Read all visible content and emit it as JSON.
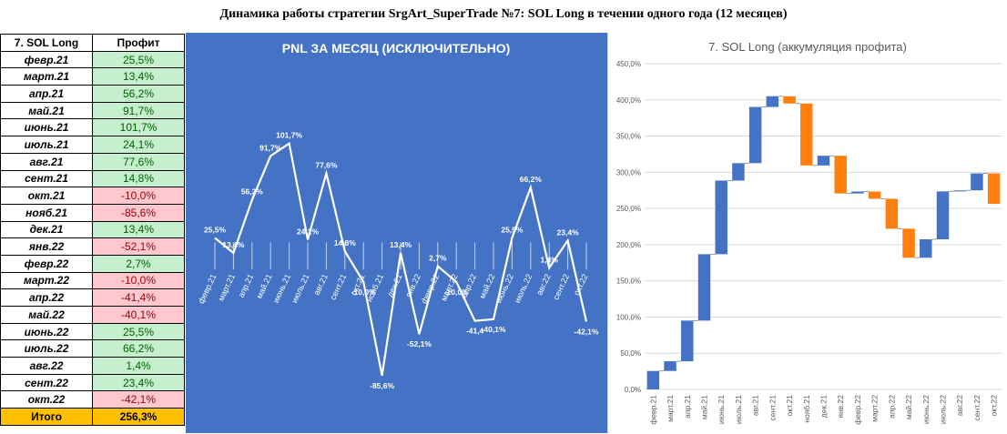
{
  "title": "Динамика работы стратегии SrgArt_SuperTrade №7: SOL Long в течении одного года (12 месяцев)",
  "table": {
    "header": [
      "7. SOL Long",
      "Профит"
    ],
    "rows": [
      {
        "month": "февр.21",
        "value": "25,5%",
        "sign": "pos"
      },
      {
        "month": "март.21",
        "value": "13,4%",
        "sign": "pos"
      },
      {
        "month": "апр.21",
        "value": "56,2%",
        "sign": "pos"
      },
      {
        "month": "май.21",
        "value": "91,7%",
        "sign": "pos"
      },
      {
        "month": "июнь.21",
        "value": "101,7%",
        "sign": "pos"
      },
      {
        "month": "июль.21",
        "value": "24,1%",
        "sign": "pos"
      },
      {
        "month": "авг.21",
        "value": "77,6%",
        "sign": "pos"
      },
      {
        "month": "сент.21",
        "value": "14,8%",
        "sign": "pos"
      },
      {
        "month": "окт.21",
        "value": "-10,0%",
        "sign": "neg"
      },
      {
        "month": "нояб.21",
        "value": "-85,6%",
        "sign": "neg"
      },
      {
        "month": "дек.21",
        "value": "13,4%",
        "sign": "pos"
      },
      {
        "month": "янв.22",
        "value": "-52,1%",
        "sign": "neg"
      },
      {
        "month": "февр.22",
        "value": "2,7%",
        "sign": "pos"
      },
      {
        "month": "март.22",
        "value": "-10,0%",
        "sign": "neg"
      },
      {
        "month": "апр.22",
        "value": "-41,4%",
        "sign": "neg"
      },
      {
        "month": "май.22",
        "value": "-40,1%",
        "sign": "neg"
      },
      {
        "month": "июнь.22",
        "value": "25,5%",
        "sign": "pos"
      },
      {
        "month": "июль.22",
        "value": "66,2%",
        "sign": "pos"
      },
      {
        "month": "авг.22",
        "value": "1,4%",
        "sign": "pos"
      },
      {
        "month": "сент.22",
        "value": "23,4%",
        "sign": "pos"
      },
      {
        "month": "окт.22",
        "value": "-42,1%",
        "sign": "neg"
      }
    ],
    "total_label": "Итого",
    "total_value": "256,3%"
  },
  "chart_data": [
    {
      "type": "line",
      "title": "PNL ЗА МЕСЯЦ (ИСКЛЮЧИТЕЛЬНО)",
      "categories": [
        "февр.21",
        "март.21",
        "апр.21",
        "май.21",
        "июнь.21",
        "июль.21",
        "авг.21",
        "сент.21",
        "окт.21",
        "нояб.21",
        "дек.21",
        "янв.22",
        "февр.22",
        "март.22",
        "апр.22",
        "май.22",
        "июнь.22",
        "июль.22",
        "авг.22",
        "сент.22",
        "окт.22"
      ],
      "values": [
        25.5,
        13.4,
        56.2,
        91.7,
        101.7,
        24.1,
        77.6,
        14.8,
        -10.0,
        -85.6,
        13.4,
        -52.1,
        2.7,
        -10.0,
        -41.4,
        -40.1,
        25.5,
        66.2,
        1.4,
        23.4,
        -42.1
      ],
      "labels": [
        "25,5%",
        "13,4%",
        "56,2%",
        "91,7%",
        "101,7%",
        "24,1%",
        "77,6%",
        "14,8%",
        "-10,0%",
        "-85,6%",
        "13,4%",
        "-52,1%",
        "2,7%",
        "-10,0%",
        "-41,4",
        "-40,1%",
        "25,5%",
        "66,2%",
        "1,4%",
        "23,4%",
        "-42,1%"
      ],
      "ylim": [
        -110,
        125
      ],
      "colors": {
        "background": "#4472c4",
        "line": "#ffffff",
        "text": "#ffffff"
      }
    },
    {
      "type": "waterfall",
      "title": "7. SOL Long (аккумуляция профита)",
      "categories": [
        "февр.21",
        "март.21",
        "апр.21",
        "май.21",
        "июнь.21",
        "июль.21",
        "авг.21",
        "сент.21",
        "окт.21",
        "нояб.21",
        "дек.21",
        "янв.22",
        "февр.22",
        "март.22",
        "апр.22",
        "май.22",
        "июнь.22",
        "июль.22",
        "авг.22",
        "сент.22",
        "окт.22"
      ],
      "values": [
        25.5,
        13.4,
        56.2,
        91.7,
        101.7,
        24.1,
        77.6,
        14.8,
        -10.0,
        -85.6,
        13.4,
        -52.1,
        2.7,
        -10.0,
        -41.4,
        -40.1,
        25.5,
        66.2,
        1.4,
        23.4,
        -42.1
      ],
      "ylim": [
        0,
        450
      ],
      "ytick_labels": [
        "0,0%",
        "50,0%",
        "100,0%",
        "150,0%",
        "200,0%",
        "250,0%",
        "300,0%",
        "350,0%",
        "400,0%",
        "450,0%"
      ],
      "colors": {
        "increase": "#4472c4",
        "decrease": "#ff7f0e",
        "axis": "#595959",
        "grid": "#d9d9d9"
      }
    }
  ]
}
